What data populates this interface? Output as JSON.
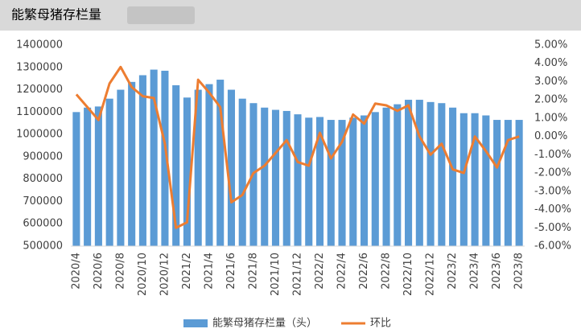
{
  "chart_data": {
    "type": "bar-line",
    "title": "能繁母猪存栏量",
    "categories": [
      "2020/4",
      null,
      "2020/6",
      null,
      "2020/8",
      null,
      "2020/10",
      null,
      "2020/12",
      null,
      "2021/2",
      null,
      "2021/4",
      null,
      "2021/6",
      null,
      "2021/8",
      null,
      "2021/10",
      null,
      "2021/12",
      null,
      "2022/2",
      null,
      "2022/4",
      null,
      "2022/6",
      null,
      "2022/8",
      null,
      "2022/10",
      null,
      "2022/12",
      null,
      "2023/2",
      null,
      "2023/4",
      null,
      "2023/6",
      null,
      "2023/8"
    ],
    "series": [
      {
        "name": "能繁母猪存栏量（头）",
        "type": "bar",
        "color": "#5b9bd5",
        "values": [
          1100000,
          1120000,
          1125000,
          1160000,
          1200000,
          1235000,
          1265000,
          1290000,
          1285000,
          1220000,
          1165000,
          1200000,
          1225000,
          1245000,
          1200000,
          1160000,
          1140000,
          1120000,
          1110000,
          1105000,
          1090000,
          1075000,
          1078000,
          1065000,
          1065000,
          1075000,
          1085000,
          1100000,
          1120000,
          1135000,
          1155000,
          1155000,
          1145000,
          1140000,
          1120000,
          1095000,
          1095000,
          1085000,
          1065000,
          1065000,
          1065000
        ]
      },
      {
        "name": "环比",
        "type": "line",
        "axis": "y2",
        "color": "#ed7d31",
        "values": [
          2.3,
          1.6,
          0.9,
          2.9,
          3.8,
          2.7,
          2.2,
          2.1,
          -0.4,
          -5.0,
          -4.7,
          3.1,
          2.4,
          1.6,
          -3.6,
          -3.2,
          -2.0,
          -1.6,
          -0.9,
          -0.2,
          -1.4,
          -1.6,
          0.2,
          -1.2,
          -0.3,
          1.2,
          0.7,
          1.8,
          1.7,
          1.4,
          1.7,
          0.0,
          -1.0,
          -0.4,
          -1.8,
          -2.0,
          0.0,
          -0.8,
          -1.7,
          -0.2,
          0.0
        ]
      }
    ],
    "ylim": [
      500000,
      1400000
    ],
    "yticks": [
      500000,
      600000,
      700000,
      800000,
      900000,
      1000000,
      1100000,
      1200000,
      1300000,
      1400000
    ],
    "y2lim": [
      -6,
      5
    ],
    "y2ticks": [
      {
        "value": -6,
        "label": "-6.00%"
      },
      {
        "value": -5,
        "label": "-5.00%"
      },
      {
        "value": -4,
        "label": "-4.00%"
      },
      {
        "value": -3,
        "label": "-3.00%"
      },
      {
        "value": -2,
        "label": "-2.00%"
      },
      {
        "value": -1,
        "label": "-1.00%"
      },
      {
        "value": 0,
        "label": "0.00%"
      },
      {
        "value": 1,
        "label": "1.00%"
      },
      {
        "value": 2,
        "label": "2.00%"
      },
      {
        "value": 3,
        "label": "3.00%"
      },
      {
        "value": 4,
        "label": "4.00%"
      },
      {
        "value": 5,
        "label": "5.00%"
      }
    ],
    "grid": false,
    "legend": "bottom"
  }
}
